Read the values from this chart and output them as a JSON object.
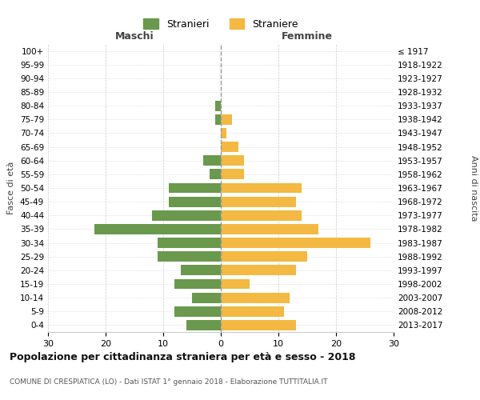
{
  "age_groups": [
    "0-4",
    "5-9",
    "10-14",
    "15-19",
    "20-24",
    "25-29",
    "30-34",
    "35-39",
    "40-44",
    "45-49",
    "50-54",
    "55-59",
    "60-64",
    "65-69",
    "70-74",
    "75-79",
    "80-84",
    "85-89",
    "90-94",
    "95-99",
    "100+"
  ],
  "birth_years": [
    "2013-2017",
    "2008-2012",
    "2003-2007",
    "1998-2002",
    "1993-1997",
    "1988-1992",
    "1983-1987",
    "1978-1982",
    "1973-1977",
    "1968-1972",
    "1963-1967",
    "1958-1962",
    "1953-1957",
    "1948-1952",
    "1943-1947",
    "1938-1942",
    "1933-1937",
    "1928-1932",
    "1923-1927",
    "1918-1922",
    "≤ 1917"
  ],
  "maschi": [
    6,
    8,
    5,
    8,
    7,
    11,
    11,
    22,
    12,
    9,
    9,
    2,
    3,
    0,
    0,
    1,
    1,
    0,
    0,
    0,
    0
  ],
  "femmine": [
    13,
    11,
    12,
    5,
    13,
    15,
    26,
    17,
    14,
    13,
    14,
    4,
    4,
    3,
    1,
    2,
    0,
    0,
    0,
    0,
    0
  ],
  "maschi_color": "#6a994e",
  "femmine_color": "#f4b942",
  "title": "Popolazione per cittadinanza straniera per età e sesso - 2018",
  "subtitle": "COMUNE DI CRESPIATICA (LO) - Dati ISTAT 1° gennaio 2018 - Elaborazione TUTTITALIA.IT",
  "xlabel_left": "Maschi",
  "xlabel_right": "Femmine",
  "ylabel_left": "Fasce di età",
  "ylabel_right": "Anni di nascita",
  "legend_stranieri": "Stranieri",
  "legend_straniere": "Straniere",
  "xlim": 30,
  "background_color": "#ffffff",
  "grid_color": "#cccccc"
}
